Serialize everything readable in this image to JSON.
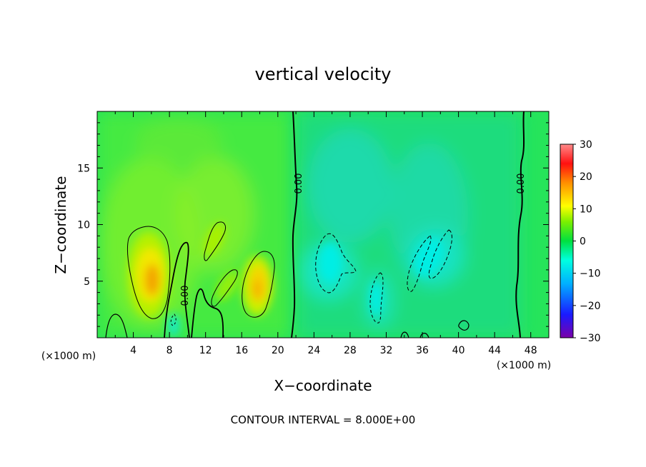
{
  "chart_data": {
    "type": "heatmap",
    "title": "vertical velocity",
    "xlabel": "X−coordinate",
    "ylabel": "Z−coordinate",
    "x_units_left": "(×1000 m)",
    "x_units_right": "(×1000 m)",
    "xlim": [
      0,
      50
    ],
    "ylim": [
      0,
      20
    ],
    "x_ticks": [
      4,
      8,
      12,
      16,
      20,
      24,
      28,
      32,
      36,
      40,
      44,
      48
    ],
    "y_ticks": [
      5,
      10,
      15
    ],
    "colorbar": {
      "range": [
        -30,
        30
      ],
      "ticks": [
        30,
        20,
        10,
        0,
        -10,
        -20,
        -30
      ],
      "tick_labels": [
        "30",
        "20",
        "10",
        "0",
        "−10",
        "−20",
        "−30"
      ],
      "colormap": [
        "#7b00a8",
        "#1a1aff",
        "#00b0ff",
        "#00ffe0",
        "#00e040",
        "#7cf000",
        "#ffff00",
        "#ff9000",
        "#ff1010",
        "#ff8a8a"
      ]
    },
    "contour_label": "0.00",
    "contour_interval_text": "CONTOUR INTERVAL = 8.000E+00",
    "field_features": [
      {
        "type": "updraft",
        "x": 6.2,
        "z": 5.5,
        "peak": 14
      },
      {
        "type": "updraft",
        "x": 18.2,
        "z": 4.5,
        "peak": 12
      },
      {
        "type": "updraft",
        "x": 13.5,
        "z": 9.0,
        "peak": 8
      },
      {
        "type": "downdraft",
        "x": 26.0,
        "z": 7.0,
        "peak": -9
      },
      {
        "type": "downdraft",
        "x": 38.0,
        "z": 7.5,
        "peak": -8
      },
      {
        "type": "downdraft",
        "x": 31.0,
        "z": 3.0,
        "peak": -6
      }
    ]
  }
}
